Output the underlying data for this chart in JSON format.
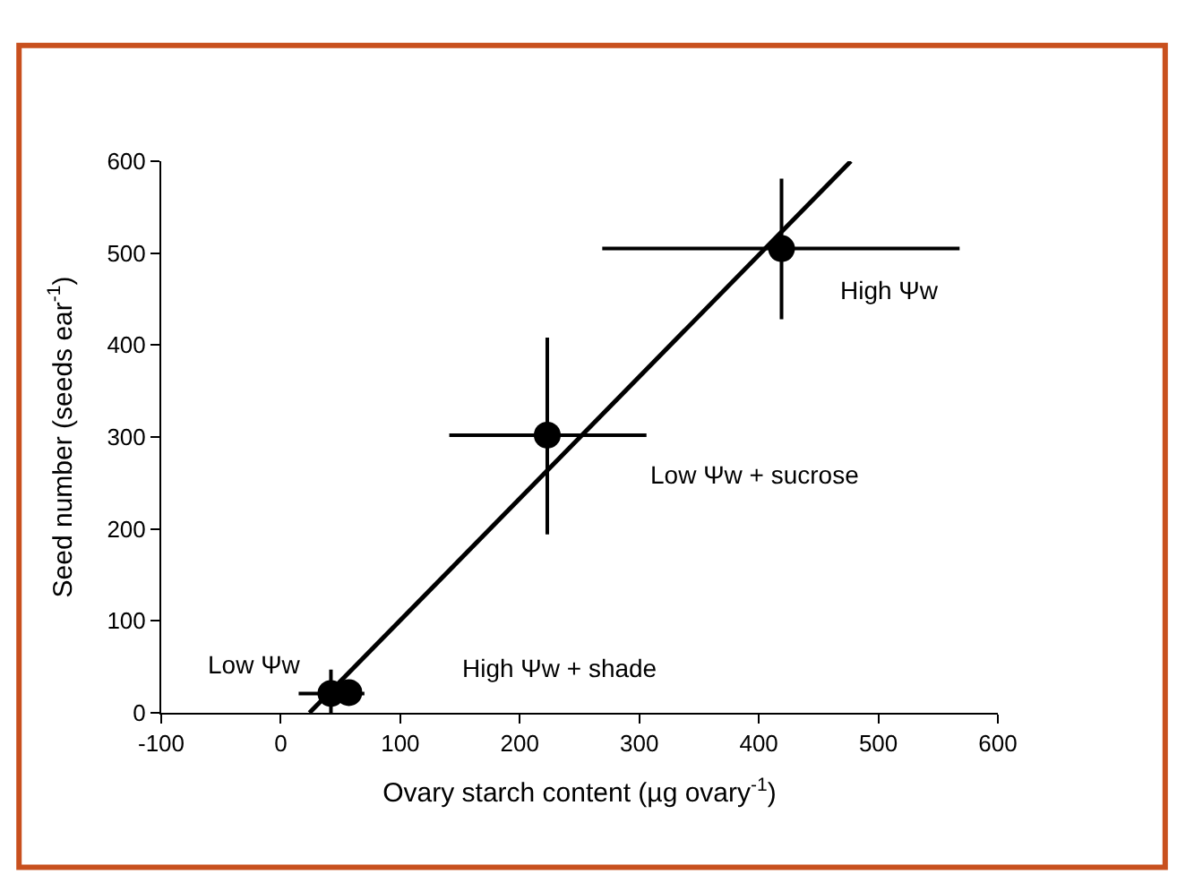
{
  "chart_data": {
    "type": "scatter",
    "xlabel": "Ovary starch content (µg ovary$^{-1}$)",
    "ylabel": "Seed number (seeds ear$^{-1}$)",
    "xlim": [
      -100,
      600
    ],
    "ylim": [
      0,
      600
    ],
    "xticks": [
      -100,
      0,
      100,
      200,
      300,
      400,
      500,
      600
    ],
    "yticks": [
      0,
      100,
      200,
      300,
      400,
      500,
      600
    ],
    "grid": false,
    "marker": "circle",
    "series": [
      {
        "color": "#000000",
        "x": [
          42,
          57,
          223,
          419
        ],
        "values": [
          21,
          22,
          302,
          505
        ],
        "errors": [
          [
            0,
            47
          ],
          null,
          [
            194,
            408
          ],
          [
            428,
            581
          ]
        ],
        "xerrors": [
          [
            15,
            70
          ],
          null,
          [
            141,
            306
          ],
          [
            269,
            568
          ]
        ]
      },
      {
        "type": "line",
        "color": "#000000",
        "x": [
          24,
          477
        ],
        "values": [
          0,
          600
        ],
        "marker": "none",
        "line_style": "solid"
      }
    ],
    "annotations": [
      {
        "text": "High Ψw",
        "x": 419,
        "y": 505
      },
      "Low Ψw + sucrose",
      {
        "text": "Low Ψw",
        "x": 42,
        "y": 21
      },
      "High Ψw + shade"
    ]
  }
}
